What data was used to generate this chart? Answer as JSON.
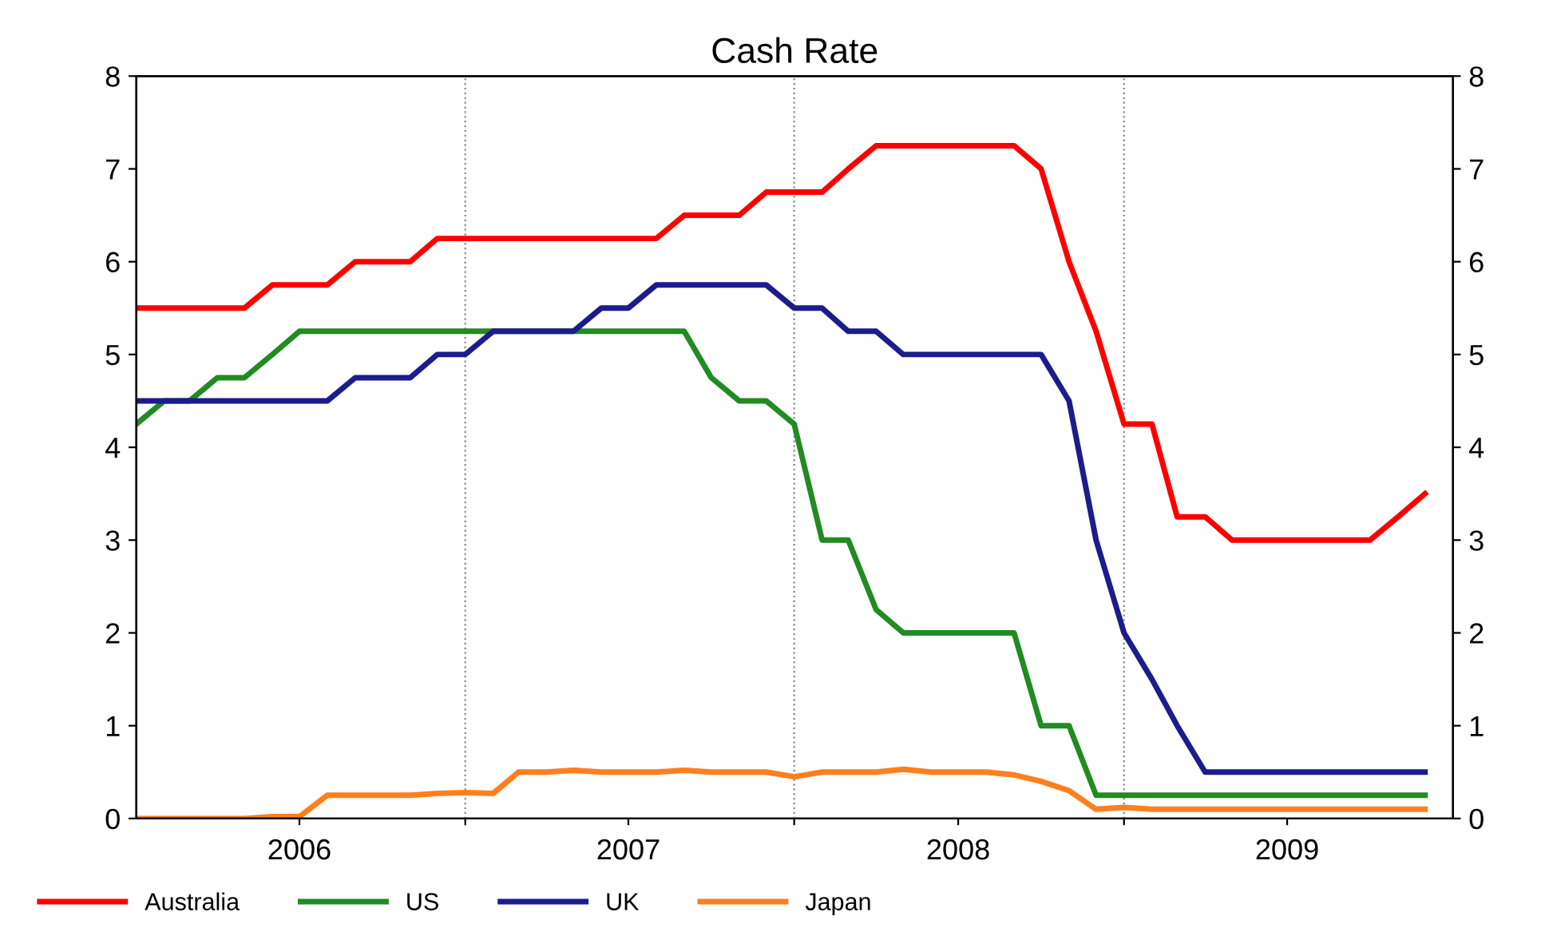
{
  "chart_data": {
    "type": "line",
    "title": "Cash Rate",
    "x": [
      "2006-01",
      "2006-02",
      "2006-03",
      "2006-04",
      "2006-05",
      "2006-06",
      "2006-07",
      "2006-08",
      "2006-09",
      "2006-10",
      "2006-11",
      "2006-12",
      "2007-01",
      "2007-02",
      "2007-03",
      "2007-04",
      "2007-05",
      "2007-06",
      "2007-07",
      "2007-08",
      "2007-09",
      "2007-10",
      "2007-11",
      "2007-12",
      "2008-01",
      "2008-02",
      "2008-03",
      "2008-04",
      "2008-05",
      "2008-06",
      "2008-07",
      "2008-08",
      "2008-09",
      "2008-10",
      "2008-11",
      "2008-12",
      "2009-01",
      "2009-02",
      "2009-03",
      "2009-04",
      "2009-05",
      "2009-06",
      "2009-07",
      "2009-08",
      "2009-09",
      "2009-10",
      "2009-11",
      "2009-12"
    ],
    "series": [
      {
        "name": "Australia",
        "color": "#ff0000",
        "values": [
          5.5,
          5.5,
          5.5,
          5.5,
          5.5,
          5.75,
          5.75,
          5.75,
          6.0,
          6.0,
          6.0,
          6.25,
          6.25,
          6.25,
          6.25,
          6.25,
          6.25,
          6.25,
          6.25,
          6.25,
          6.5,
          6.5,
          6.5,
          6.75,
          6.75,
          6.75,
          7.0,
          7.25,
          7.25,
          7.25,
          7.25,
          7.25,
          7.25,
          7.0,
          6.0,
          5.25,
          4.25,
          4.25,
          3.25,
          3.25,
          3.0,
          3.0,
          3.0,
          3.0,
          3.0,
          3.0,
          3.25,
          3.5
        ]
      },
      {
        "name": "US",
        "color": "#228b22",
        "values": [
          4.25,
          4.5,
          4.5,
          4.75,
          4.75,
          5.0,
          5.25,
          5.25,
          5.25,
          5.25,
          5.25,
          5.25,
          5.25,
          5.25,
          5.25,
          5.25,
          5.25,
          5.25,
          5.25,
          5.25,
          5.25,
          4.75,
          4.5,
          4.5,
          4.25,
          3.0,
          3.0,
          2.25,
          2.0,
          2.0,
          2.0,
          2.0,
          2.0,
          1.0,
          1.0,
          0.25,
          0.25,
          0.25,
          0.25,
          0.25,
          0.25,
          0.25,
          0.25,
          0.25,
          0.25,
          0.25,
          0.25,
          0.25
        ]
      },
      {
        "name": "UK",
        "color": "#1c1c8c",
        "values": [
          4.5,
          4.5,
          4.5,
          4.5,
          4.5,
          4.5,
          4.5,
          4.5,
          4.75,
          4.75,
          4.75,
          5.0,
          5.0,
          5.25,
          5.25,
          5.25,
          5.25,
          5.5,
          5.5,
          5.75,
          5.75,
          5.75,
          5.75,
          5.75,
          5.5,
          5.5,
          5.25,
          5.25,
          5.0,
          5.0,
          5.0,
          5.0,
          5.0,
          5.0,
          4.5,
          3.0,
          2.0,
          1.5,
          1.0,
          0.5,
          0.5,
          0.5,
          0.5,
          0.5,
          0.5,
          0.5,
          0.5,
          0.5
        ]
      },
      {
        "name": "Japan",
        "color": "#ff7f1e",
        "values": [
          0,
          0,
          0,
          0,
          0,
          0.02,
          0.02,
          0.25,
          0.25,
          0.25,
          0.25,
          0.27,
          0.28,
          0.27,
          0.5,
          0.5,
          0.52,
          0.5,
          0.5,
          0.5,
          0.52,
          0.5,
          0.5,
          0.5,
          0.45,
          0.5,
          0.5,
          0.5,
          0.53,
          0.5,
          0.5,
          0.5,
          0.47,
          0.4,
          0.3,
          0.1,
          0.12,
          0.1,
          0.1,
          0.1,
          0.1,
          0.1,
          0.1,
          0.1,
          0.1,
          0.1,
          0.1,
          0.1
        ]
      }
    ],
    "xlim": [
      "2006-01",
      "2010-01"
    ],
    "xticks": [
      {
        "value": "2006-07-01",
        "label": "2006"
      },
      {
        "value": "2007-01-01",
        "label": null
      },
      {
        "value": "2007-07-01",
        "label": "2007"
      },
      {
        "value": "2008-01-01",
        "label": null
      },
      {
        "value": "2008-07-01",
        "label": "2008"
      },
      {
        "value": "2009-01-01",
        "label": null
      },
      {
        "value": "2009-07-01",
        "label": "2009"
      }
    ],
    "ylim": [
      0,
      8
    ],
    "yticks": [
      0,
      1,
      2,
      3,
      4,
      5,
      6,
      7,
      8
    ],
    "y2lim": [
      0,
      8
    ],
    "y2ticks": [
      0,
      1,
      2,
      3,
      4,
      5,
      6,
      7,
      8
    ],
    "grid": "x",
    "legend": "bottom left",
    "marker": "none",
    "line_style": "solid"
  }
}
